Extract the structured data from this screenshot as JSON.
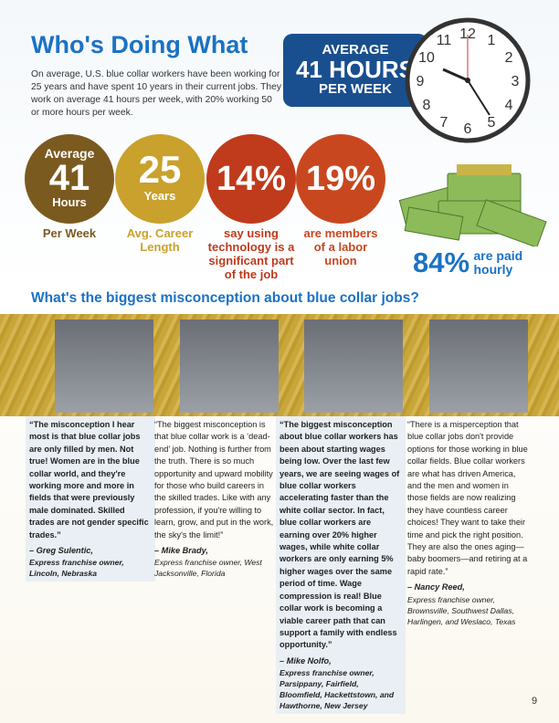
{
  "header": {
    "title": "Who's Doing What",
    "intro": "On average, U.S. blue collar workers have been working for 25 years and have spent 10 years in their current jobs. They work on average 41 hours per week, with 20% working 50 or more hours per week."
  },
  "badge": {
    "line1": "AVERAGE",
    "line2": "41 HOURS",
    "line3": "PER WEEK"
  },
  "clock": {
    "numbers": [
      "12",
      "1",
      "2",
      "3",
      "4",
      "5",
      "6",
      "7",
      "8",
      "9",
      "10",
      "11"
    ]
  },
  "stats": [
    {
      "top": "Average",
      "big": "41",
      "bottom": "Hours",
      "caption": "Per Week"
    },
    {
      "big": "25",
      "bottom": "Years",
      "caption": "Avg. Career Length"
    },
    {
      "big": "14%",
      "caption": "say using technology is a significant part of the job"
    },
    {
      "big": "19%",
      "caption": "are members of a labor union"
    }
  ],
  "paid": {
    "big": "84%",
    "text": "are paid hourly"
  },
  "section_title": "What's the biggest misconception about blue collar jobs?",
  "quotes": [
    {
      "text": "“The misconception I hear most is that blue collar jobs are only filled by men. Not true! Women are in the blue collar world, and they're working more and more in fields that were previously male dominated. Skilled trades are not gender specific trades.”",
      "name": "– Greg Sulentic,",
      "role": "Express franchise owner, Lincoln, Nebraska"
    },
    {
      "text": "“The biggest misconception is that blue collar work is a ‘dead-end’ job. Nothing is further from the truth. There is so much opportunity and upward mobility for those who build careers in the skilled trades. Like with any profession, if you're willing to learn, grow, and put in the work, the sky's the limit!”",
      "name": "– Mike Brady,",
      "role": "Express franchise owner, West Jacksonville, Florida"
    },
    {
      "text": "“The biggest misconception about blue collar workers has been about starting wages being low. Over the last few years, we are seeing wages of blue collar workers accelerating faster than the white collar sector. In fact, blue collar workers are earning over 20% higher wages, while white collar workers are only earning 5% higher wages over the same period of time. Wage compression is real! Blue collar work is becoming a viable career path that can support a family with endless opportunity.”",
      "name": "– Mike Nolfo,",
      "role": "Express franchise owner, Parsippany, Fairfield, Bloomfield, Hackettstown, and Hawthorne, New Jersey"
    },
    {
      "text": "“There is a misperception that blue collar jobs don't provide options for those working in blue collar fields. Blue collar workers are what has driven America, and the men and women in those fields are now realizing they have countless career choices! They want to take their time and pick the right position. They are also the ones aging—baby boomers—and retiring at a rapid rate.”",
      "name": "– Nancy Reed,",
      "role": "Express franchise owner, Brownsville, Southwest Dallas, Harlingen, and Weslaco, Texas"
    }
  ],
  "page_number": "9"
}
